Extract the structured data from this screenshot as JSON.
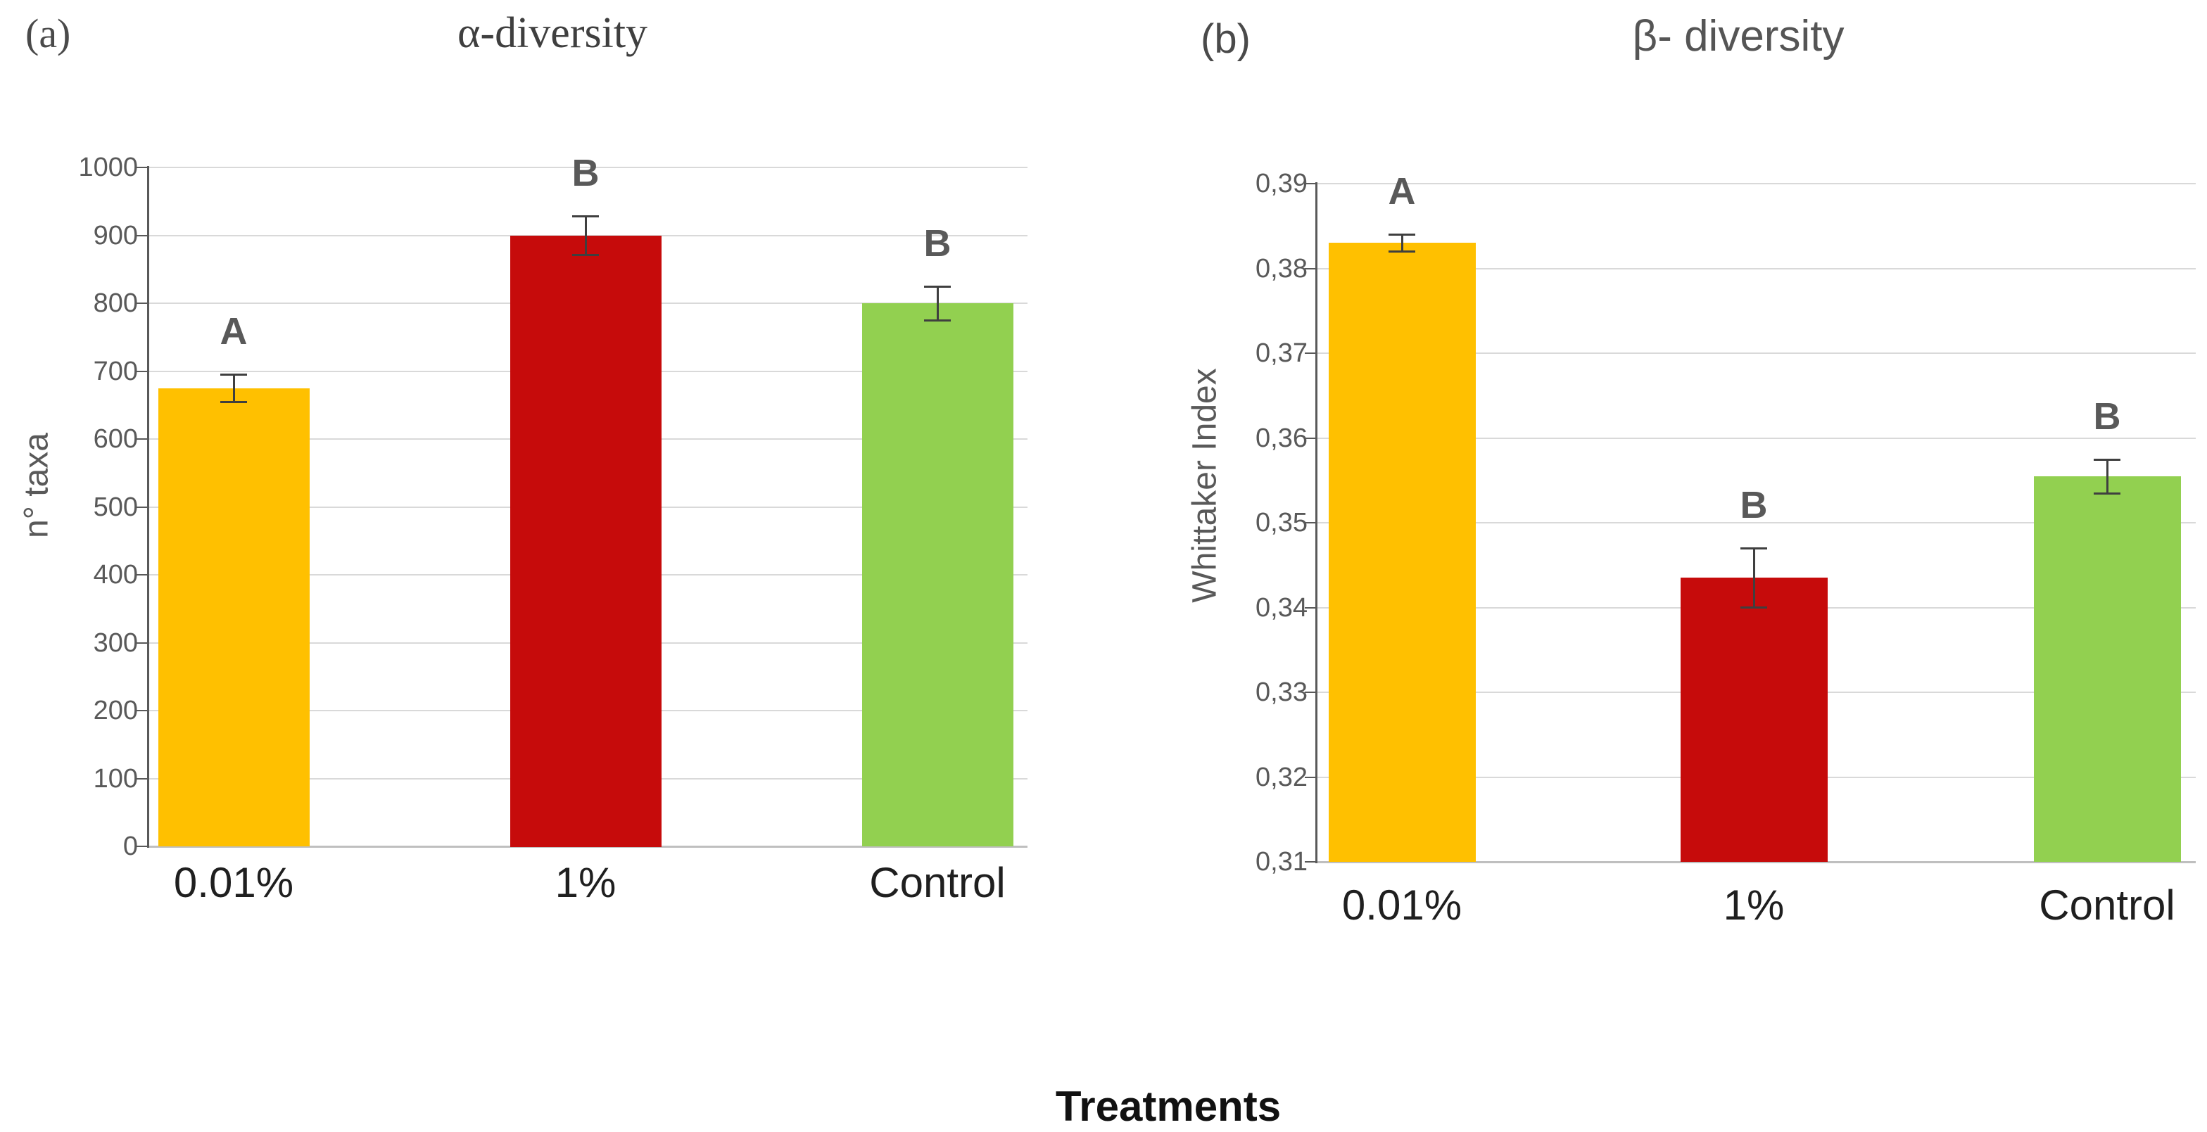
{
  "figure": {
    "x_axis_shared_label": "Treatments"
  },
  "colors": {
    "bar_low_dose": "#FFC000",
    "bar_high_dose": "#C60B0B",
    "bar_control": "#92D050",
    "gridline": "#D9D9D9",
    "baseline": "#BFBFBF",
    "axis_line": "#595959",
    "tick_text": "#595959",
    "sig_letter_text": "#595959",
    "x_label_text": "#1F1F1F",
    "error_bar": "#3F3F3F"
  },
  "chart_data": [
    {
      "id": "alpha",
      "type": "bar",
      "panel_label": "(a)",
      "title": "α-diversity",
      "xlabel": "",
      "ylabel": "n° taxa",
      "categories": [
        "0.01%",
        "1%",
        "Control"
      ],
      "values": [
        675,
        900,
        800
      ],
      "error_bars": [
        20,
        28,
        25
      ],
      "sig_letters": [
        "A",
        "B",
        "B"
      ],
      "bar_colors": [
        "#FFC000",
        "#C60B0B",
        "#92D050"
      ],
      "ylim": [
        0,
        1000
      ],
      "ytick_step": 100,
      "ytick_labels_top_to_bottom": [
        "1000",
        "900",
        "800",
        "700",
        "600",
        "500",
        "400",
        "300",
        "200",
        "100",
        "0"
      ],
      "grid": true,
      "legend": "none"
    },
    {
      "id": "beta",
      "type": "bar",
      "panel_label": "(b)",
      "title": "β- diversity",
      "xlabel": "",
      "ylabel": "Whittaker Index",
      "categories": [
        "0.01%",
        "1%",
        "Control"
      ],
      "values": [
        0.383,
        0.3435,
        0.3555
      ],
      "error_bars": [
        0.001,
        0.0035,
        0.002
      ],
      "sig_letters": [
        "A",
        "B",
        "B"
      ],
      "bar_colors": [
        "#FFC000",
        "#C60B0B",
        "#92D050"
      ],
      "ylim": [
        0.31,
        0.39
      ],
      "ytick_step": 0.01,
      "ytick_labels_top_to_bottom": [
        "0,39",
        "0,38",
        "0,37",
        "0,36",
        "0,35",
        "0,34",
        "0,33",
        "0,32",
        "0,31"
      ],
      "grid": true,
      "legend": "none"
    }
  ]
}
